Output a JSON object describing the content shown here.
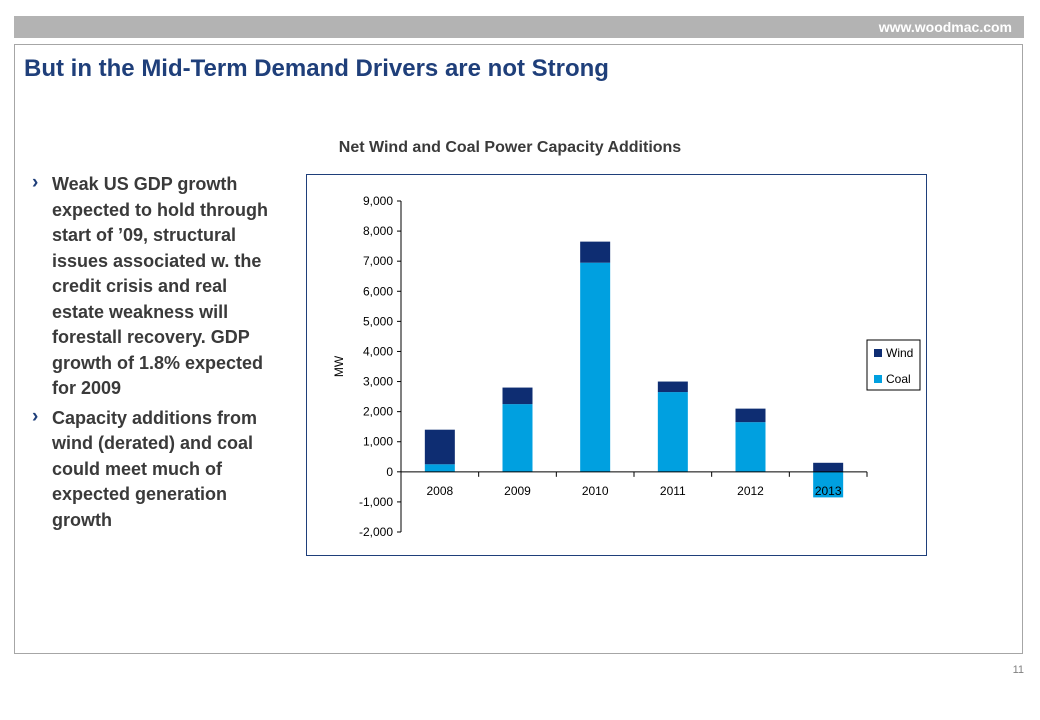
{
  "header": {
    "site": "www.woodmac.com"
  },
  "slide": {
    "title": "But in the Mid-Term Demand Drivers are not Strong",
    "bullets": [
      "Weak US GDP growth expected to hold through start of ’09, structural issues associated w. the credit crisis and real estate weakness will forestall recovery. GDP growth of 1.8% expected for 2009",
      "Capacity additions from wind (derated) and coal could meet much of expected generation growth"
    ],
    "bullet_marker": "›",
    "page_number": "11"
  },
  "colors": {
    "title": "#1f3f7a",
    "wind": "#0e2d72",
    "coal": "#00a0e0"
  },
  "chart_data": {
    "type": "bar",
    "stacked": true,
    "title": "Net Wind and Coal Power Capacity Additions",
    "xlabel": "",
    "ylabel": "MW",
    "categories": [
      "2008",
      "2009",
      "2010",
      "2011",
      "2012",
      "2013"
    ],
    "series": [
      {
        "name": "Coal",
        "values": [
          250,
          2250,
          6950,
          2650,
          1650,
          -850
        ]
      },
      {
        "name": "Wind",
        "values": [
          1150,
          550,
          700,
          350,
          450,
          300
        ]
      }
    ],
    "ylim": [
      -2000,
      9000
    ],
    "yticks": [
      "9,000",
      "8,000",
      "7,000",
      "6,000",
      "5,000",
      "4,000",
      "3,000",
      "2,000",
      "1,000",
      "0",
      "-1,000",
      "-2,000"
    ],
    "ytick_values": [
      9000,
      8000,
      7000,
      6000,
      5000,
      4000,
      3000,
      2000,
      1000,
      0,
      -1000,
      -2000
    ],
    "legend": [
      "Wind",
      "Coal"
    ],
    "legend_position": "right",
    "grid": false
  }
}
